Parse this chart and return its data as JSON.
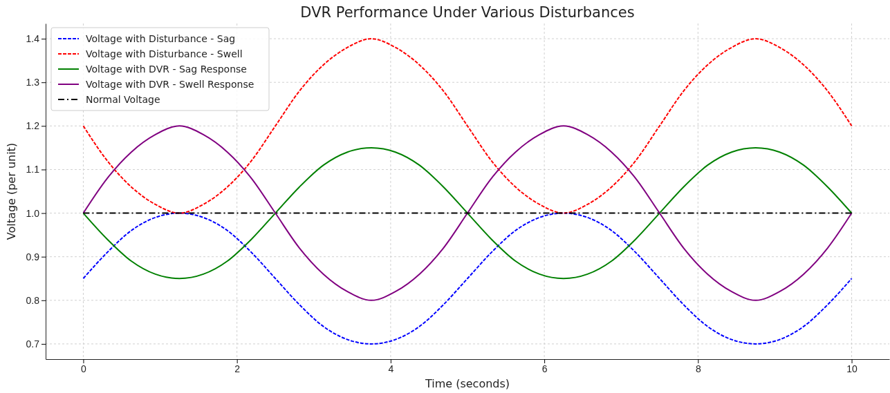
{
  "chart_data": {
    "type": "line",
    "title": "DVR Performance Under Various Disturbances",
    "xlabel": "Time (seconds)",
    "ylabel": "Voltage (per unit)",
    "x": [
      0,
      0.3125,
      0.625,
      0.9375,
      1.25,
      1.5625,
      1.875,
      2.1875,
      2.5,
      2.8125,
      3.125,
      3.4375,
      3.75,
      4.0625,
      4.375,
      4.6875,
      5,
      5.3125,
      5.625,
      5.9375,
      6.25,
      6.5625,
      6.875,
      7.1875,
      7.5,
      7.8125,
      8.125,
      8.4375,
      8.75,
      9.0625,
      9.375,
      9.6875,
      10
    ],
    "series": [
      {
        "name": "Voltage with Disturbance - Sag",
        "color": "#0000ff",
        "line_style": "dashed",
        "values": [
          0.85,
          0.91,
          0.96,
          0.99,
          1.0,
          0.99,
          0.96,
          0.91,
          0.85,
          0.79,
          0.74,
          0.71,
          0.7,
          0.71,
          0.74,
          0.79,
          0.85,
          0.91,
          0.96,
          0.99,
          1.0,
          0.99,
          0.96,
          0.91,
          0.85,
          0.79,
          0.74,
          0.71,
          0.7,
          0.71,
          0.74,
          0.79,
          0.85
        ]
      },
      {
        "name": "Voltage with Disturbance - Swell",
        "color": "#ff0000",
        "line_style": "dashed",
        "values": [
          1.2,
          1.12,
          1.06,
          1.02,
          1.0,
          1.02,
          1.06,
          1.12,
          1.2,
          1.28,
          1.34,
          1.38,
          1.4,
          1.38,
          1.34,
          1.28,
          1.2,
          1.12,
          1.06,
          1.02,
          1.0,
          1.02,
          1.06,
          1.12,
          1.2,
          1.28,
          1.34,
          1.38,
          1.4,
          1.38,
          1.34,
          1.28,
          1.2
        ]
      },
      {
        "name": "Voltage with DVR - Sag Response",
        "color": "#008000",
        "line_style": "solid",
        "values": [
          1.0,
          0.94,
          0.89,
          0.86,
          0.85,
          0.86,
          0.89,
          0.94,
          1.0,
          1.06,
          1.11,
          1.14,
          1.15,
          1.14,
          1.11,
          1.06,
          1.0,
          0.94,
          0.89,
          0.86,
          0.85,
          0.86,
          0.89,
          0.94,
          1.0,
          1.06,
          1.11,
          1.14,
          1.15,
          1.14,
          1.11,
          1.06,
          1.0
        ]
      },
      {
        "name": "Voltage with DVR - Swell Response",
        "color": "#800080",
        "line_style": "solid",
        "values": [
          1.0,
          1.08,
          1.14,
          1.18,
          1.2,
          1.18,
          1.14,
          1.08,
          1.0,
          0.92,
          0.86,
          0.82,
          0.8,
          0.82,
          0.86,
          0.92,
          1.0,
          1.08,
          1.14,
          1.18,
          1.2,
          1.18,
          1.14,
          1.08,
          1.0,
          0.92,
          0.86,
          0.82,
          0.8,
          0.82,
          0.86,
          0.92,
          1.0
        ]
      },
      {
        "name": "Normal Voltage",
        "color": "#000000",
        "line_style": "dashdot",
        "x": [
          0,
          10
        ],
        "values": [
          1.0,
          1.0
        ]
      }
    ],
    "xlim": [
      -0.49,
      10.49
    ],
    "ylim": [
      0.665,
      1.435
    ],
    "xticks": [
      0,
      2,
      4,
      6,
      8,
      10
    ],
    "yticks": [
      0.7,
      0.8,
      0.9,
      {
        "value": 1,
        "label": "1.0"
      },
      1.1,
      1.2,
      1.3,
      1.4
    ],
    "grid": true,
    "legend": "top left"
  }
}
